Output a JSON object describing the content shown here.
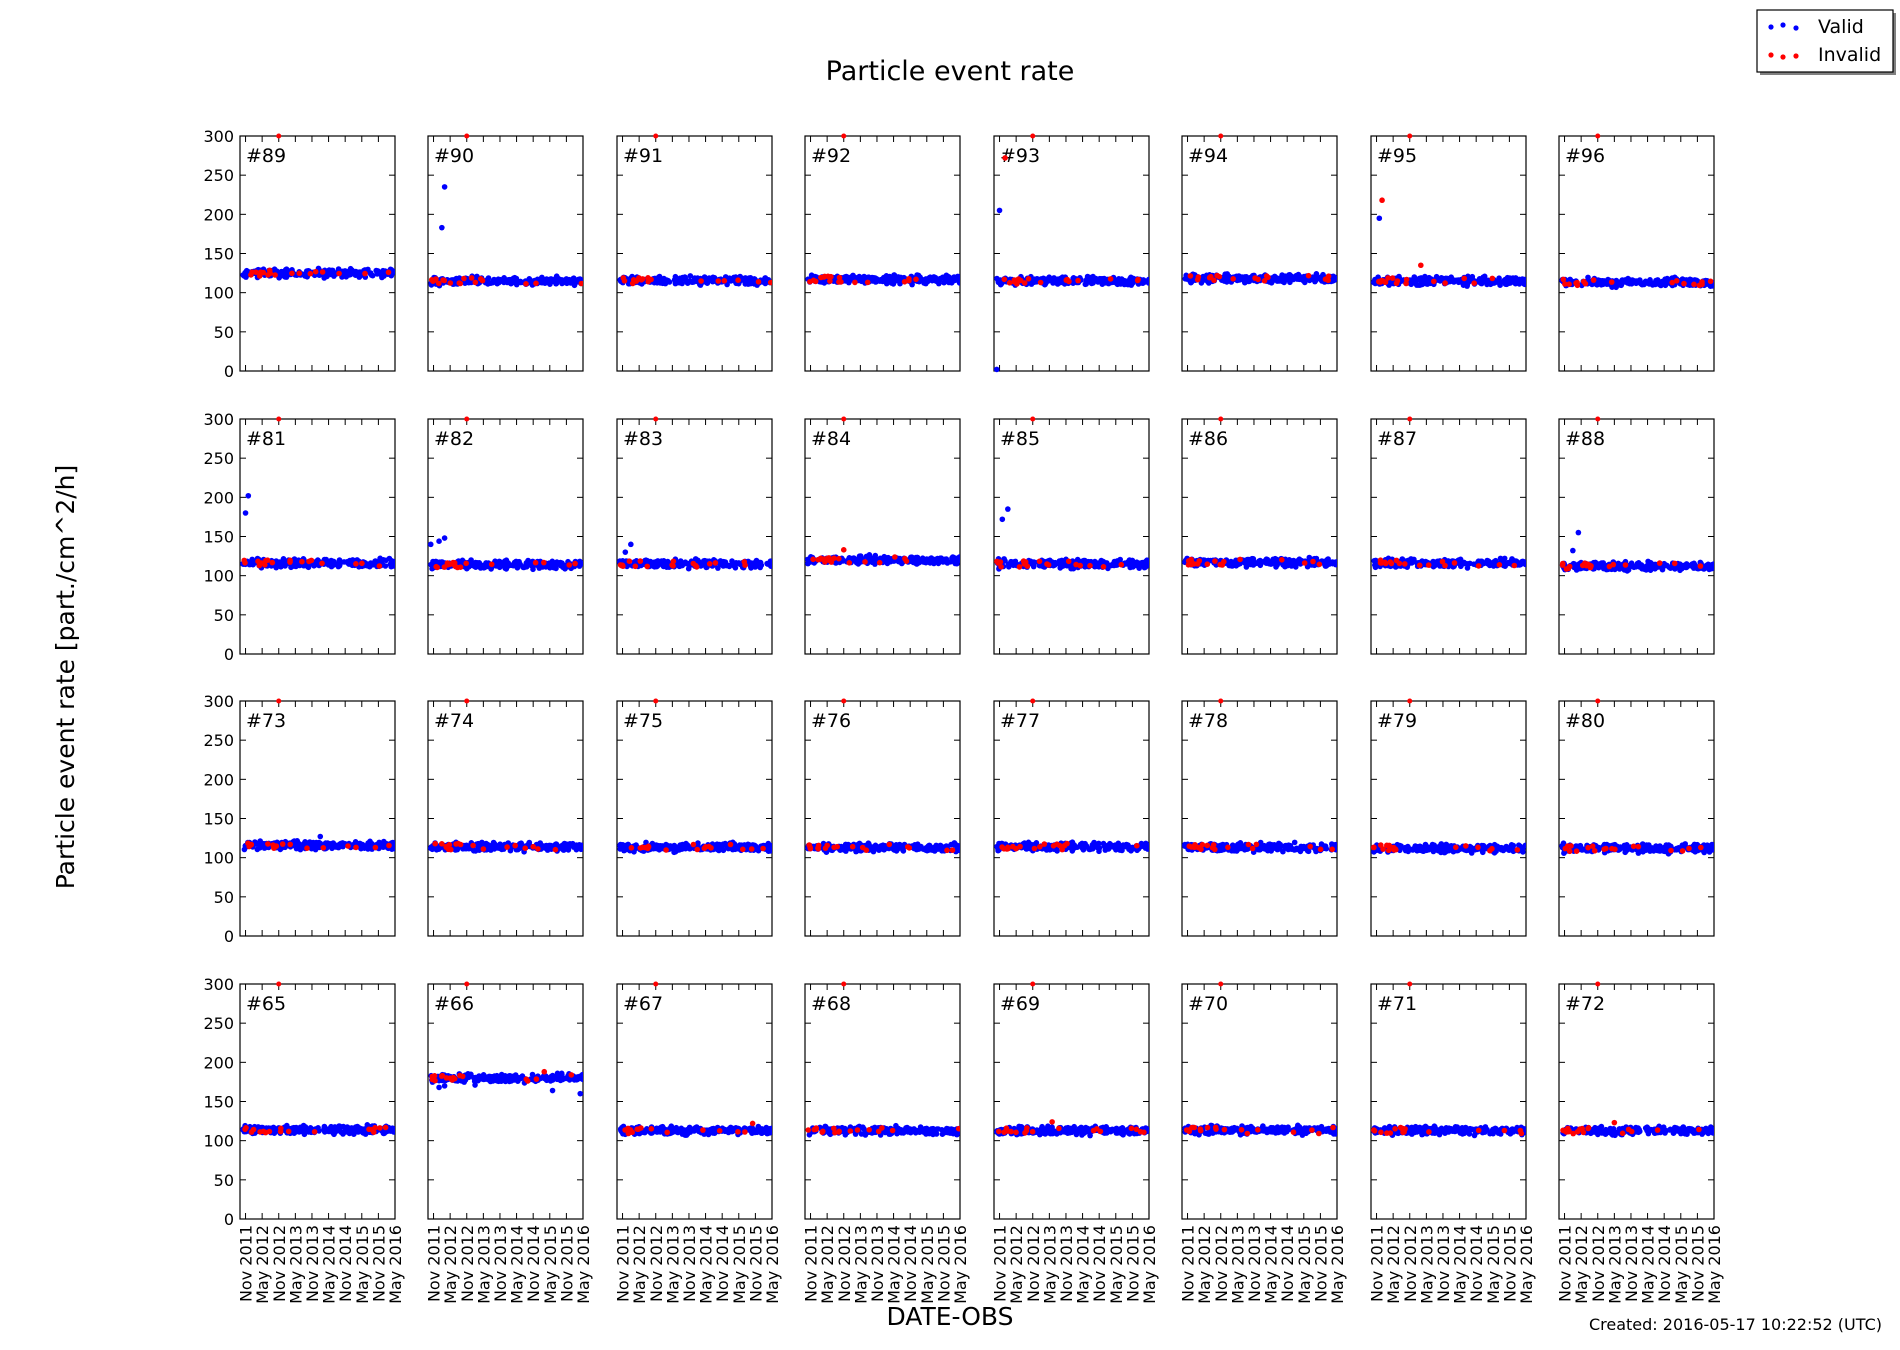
{
  "figure": {
    "title": "Particle event rate",
    "ylabel": "Particle event rate [part./cm^2/h]",
    "xlabel": "DATE-OBS",
    "created": "Created: 2016-05-17 10:22:52 (UTC)",
    "legend": {
      "placement": "top-right",
      "entries": [
        {
          "label": "Valid",
          "color": "#0000ff"
        },
        {
          "label": "Invalid",
          "color": "#ff0000"
        }
      ]
    }
  },
  "chart_data": {
    "type": "scatter",
    "layout": {
      "rows": 4,
      "cols": 8
    },
    "x_tick_labels": [
      "Nov 2011",
      "May 2012",
      "Nov 2012",
      "May 2013",
      "Nov 2013",
      "May 2014",
      "Nov 2014",
      "May 2015",
      "Nov 2015",
      "May 2016"
    ],
    "xlim": [
      "2011-09",
      "2016-05"
    ],
    "ylim": [
      0,
      300
    ],
    "y_ticks": [
      0,
      50,
      100,
      150,
      200,
      250,
      300
    ],
    "series_colors": {
      "valid": "#0000ff",
      "invalid": "#ff0000"
    },
    "panels": [
      {
        "label": "#89",
        "baseline": 125,
        "outliers": [],
        "invalid_outliers": []
      },
      {
        "label": "#90",
        "baseline": 115,
        "outliers": [
          {
            "x": "2012-02",
            "y": 183
          },
          {
            "x": "2012-03",
            "y": 235
          }
        ],
        "invalid_outliers": []
      },
      {
        "label": "#91",
        "baseline": 115,
        "outliers": [],
        "invalid_outliers": []
      },
      {
        "label": "#92",
        "baseline": 117,
        "outliers": [],
        "invalid_outliers": []
      },
      {
        "label": "#93",
        "baseline": 115,
        "outliers": [
          {
            "x": "2011-11",
            "y": 205
          },
          {
            "x": "2011-10",
            "y": 2
          }
        ],
        "invalid_outliers": [
          {
            "x": "2012-01",
            "y": 272
          }
        ]
      },
      {
        "label": "#94",
        "baseline": 118,
        "outliers": [],
        "invalid_outliers": []
      },
      {
        "label": "#95",
        "baseline": 115,
        "outliers": [
          {
            "x": "2011-12",
            "y": 195
          }
        ],
        "invalid_outliers": [
          {
            "x": "2012-01",
            "y": 218
          },
          {
            "x": "2013-03",
            "y": 135
          }
        ]
      },
      {
        "label": "#96",
        "baseline": 113,
        "outliers": [],
        "invalid_outliers": []
      },
      {
        "label": "#81",
        "baseline": 116,
        "outliers": [
          {
            "x": "2011-11",
            "y": 180
          },
          {
            "x": "2011-12",
            "y": 202
          }
        ],
        "invalid_outliers": []
      },
      {
        "label": "#82",
        "baseline": 114,
        "outliers": [
          {
            "x": "2011-10",
            "y": 140
          },
          {
            "x": "2012-01",
            "y": 144
          },
          {
            "x": "2012-03",
            "y": 148
          }
        ],
        "invalid_outliers": []
      },
      {
        "label": "#83",
        "baseline": 115,
        "outliers": [
          {
            "x": "2011-12",
            "y": 130
          },
          {
            "x": "2012-02",
            "y": 140
          }
        ],
        "invalid_outliers": []
      },
      {
        "label": "#84",
        "baseline": 120,
        "outliers": [],
        "invalid_outliers": [
          {
            "x": "2012-11",
            "y": 133
          }
        ]
      },
      {
        "label": "#85",
        "baseline": 115,
        "outliers": [
          {
            "x": "2011-12",
            "y": 172
          },
          {
            "x": "2012-02",
            "y": 185
          }
        ],
        "invalid_outliers": []
      },
      {
        "label": "#86",
        "baseline": 117,
        "outliers": [],
        "invalid_outliers": []
      },
      {
        "label": "#87",
        "baseline": 116,
        "outliers": [],
        "invalid_outliers": []
      },
      {
        "label": "#88",
        "baseline": 112,
        "outliers": [
          {
            "x": "2012-02",
            "y": 132
          },
          {
            "x": "2012-04",
            "y": 155
          }
        ],
        "invalid_outliers": []
      },
      {
        "label": "#73",
        "baseline": 116,
        "outliers": [
          {
            "x": "2014-02",
            "y": 127
          }
        ],
        "invalid_outliers": []
      },
      {
        "label": "#74",
        "baseline": 114,
        "outliers": [],
        "invalid_outliers": []
      },
      {
        "label": "#75",
        "baseline": 113,
        "outliers": [],
        "invalid_outliers": []
      },
      {
        "label": "#76",
        "baseline": 113,
        "outliers": [],
        "invalid_outliers": []
      },
      {
        "label": "#77",
        "baseline": 114,
        "outliers": [],
        "invalid_outliers": []
      },
      {
        "label": "#78",
        "baseline": 113,
        "outliers": [],
        "invalid_outliers": []
      },
      {
        "label": "#79",
        "baseline": 112,
        "outliers": [],
        "invalid_outliers": []
      },
      {
        "label": "#80",
        "baseline": 112,
        "outliers": [],
        "invalid_outliers": []
      },
      {
        "label": "#65",
        "baseline": 114,
        "outliers": [],
        "invalid_outliers": []
      },
      {
        "label": "#66",
        "baseline": 180,
        "outliers": [
          {
            "x": "2012-01",
            "y": 168
          },
          {
            "x": "2012-03",
            "y": 170
          },
          {
            "x": "2013-02",
            "y": 171
          },
          {
            "x": "2015-06",
            "y": 164
          },
          {
            "x": "2016-04",
            "y": 160
          }
        ],
        "invalid_outliers": [
          {
            "x": "2015-03",
            "y": 188
          }
        ]
      },
      {
        "label": "#67",
        "baseline": 113,
        "outliers": [],
        "invalid_outliers": [
          {
            "x": "2015-10",
            "y": 122
          }
        ]
      },
      {
        "label": "#68",
        "baseline": 113,
        "outliers": [],
        "invalid_outliers": []
      },
      {
        "label": "#69",
        "baseline": 113,
        "outliers": [],
        "invalid_outliers": [
          {
            "x": "2013-06",
            "y": 124
          }
        ]
      },
      {
        "label": "#70",
        "baseline": 113,
        "outliers": [],
        "invalid_outliers": []
      },
      {
        "label": "#71",
        "baseline": 113,
        "outliers": [],
        "invalid_outliers": []
      },
      {
        "label": "#72",
        "baseline": 113,
        "outliers": [],
        "invalid_outliers": [
          {
            "x": "2013-05",
            "y": 123
          }
        ]
      }
    ]
  }
}
